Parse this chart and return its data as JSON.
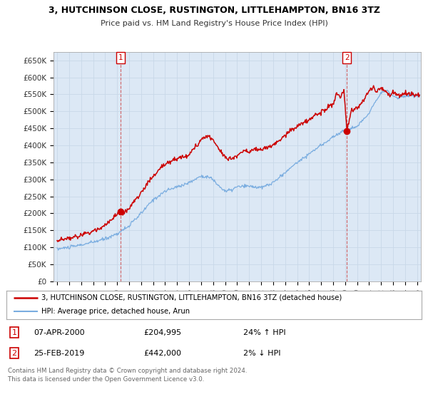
{
  "title": "3, HUTCHINSON CLOSE, RUSTINGTON, LITTLEHAMPTON, BN16 3TZ",
  "subtitle": "Price paid vs. HM Land Registry's House Price Index (HPI)",
  "ylabel_values": [
    "£0",
    "£50K",
    "£100K",
    "£150K",
    "£200K",
    "£250K",
    "£300K",
    "£350K",
    "£400K",
    "£450K",
    "£500K",
    "£550K",
    "£600K",
    "£650K"
  ],
  "ytick_values": [
    0,
    50000,
    100000,
    150000,
    200000,
    250000,
    300000,
    350000,
    400000,
    450000,
    500000,
    550000,
    600000,
    650000
  ],
  "ylim": [
    0,
    675000
  ],
  "xlim_start": 1994.7,
  "xlim_end": 2025.3,
  "marker1_x": 2000.27,
  "marker1_y": 204995,
  "marker2_x": 2019.15,
  "marker2_y": 442000,
  "legend_line1": "3, HUTCHINSON CLOSE, RUSTINGTON, LITTLEHAMPTON, BN16 3TZ (detached house)",
  "legend_line2": "HPI: Average price, detached house, Arun",
  "annotation1_date": "07-APR-2000",
  "annotation1_price": "£204,995",
  "annotation1_hpi": "24% ↑ HPI",
  "annotation2_date": "25-FEB-2019",
  "annotation2_price": "£442,000",
  "annotation2_hpi": "2% ↓ HPI",
  "footer": "Contains HM Land Registry data © Crown copyright and database right 2024.\nThis data is licensed under the Open Government Licence v3.0.",
  "line_color_red": "#cc0000",
  "line_color_blue": "#7aade0",
  "marker_dashed_color": "#cc0000",
  "background_color": "#ffffff",
  "grid_color": "#c8d8e8",
  "plot_bg_color": "#dce8f5"
}
